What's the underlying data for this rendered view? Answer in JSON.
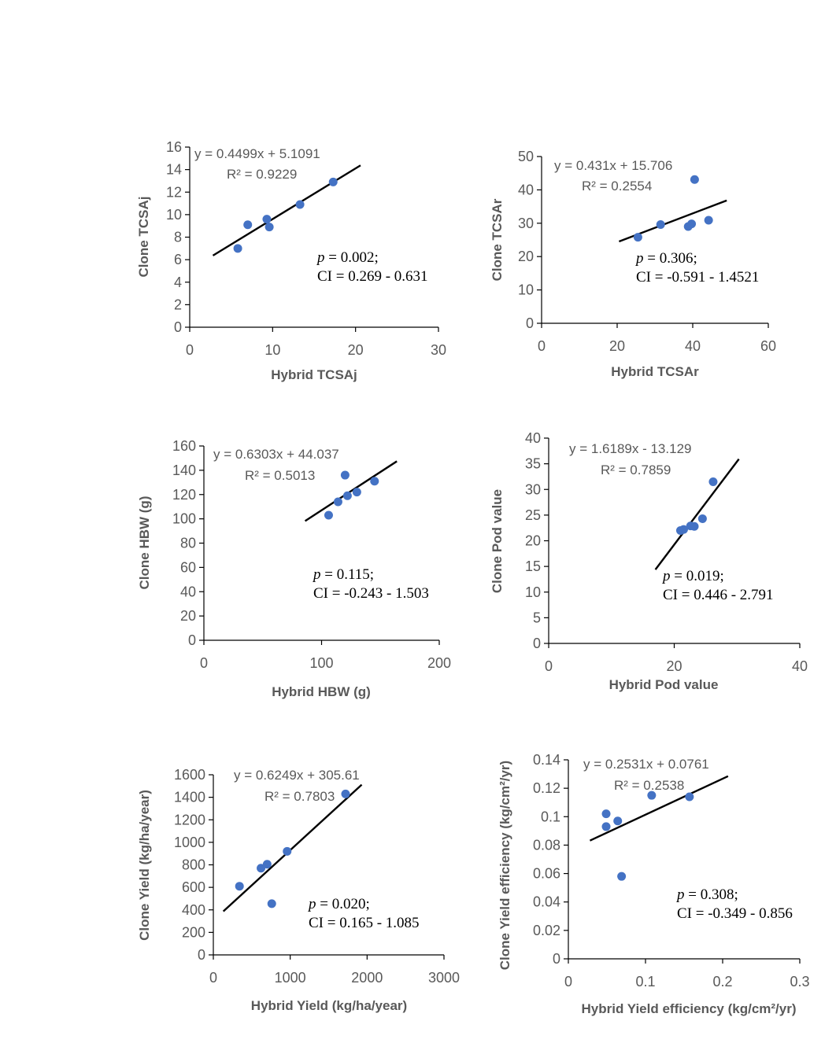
{
  "colors": {
    "point": "#4472c4",
    "trendline": "#000000",
    "text": "#595959"
  },
  "chart_data": [
    {
      "type": "scatter",
      "xlabel": "Hybrid TCSAj",
      "ylabel": "Clone TCSAj",
      "xlim": [
        0,
        30
      ],
      "ylim": [
        0,
        16
      ],
      "xticks": [
        "0",
        "10",
        "20",
        "30"
      ],
      "yticks": [
        "0",
        "2",
        "4",
        "6",
        "8",
        "10",
        "12",
        "14",
        "16"
      ],
      "points": [
        [
          5.8,
          7.0
        ],
        [
          7.0,
          9.1
        ],
        [
          9.3,
          9.6
        ],
        [
          9.6,
          8.9
        ],
        [
          13.3,
          10.9
        ],
        [
          17.3,
          12.9
        ]
      ],
      "trendline": {
        "x": [
          2.8,
          20.6
        ]
      },
      "equation": "y = 0.4499x + 5.1091",
      "r2": "R² = 0.9229",
      "p_value": "p = 0.002;",
      "ci": "CI = 0.269 - 0.631"
    },
    {
      "type": "scatter",
      "xlabel": "Hybrid TCSAr",
      "ylabel": "Clone TCSAr",
      "xlim": [
        0,
        60
      ],
      "ylim": [
        0,
        50
      ],
      "xticks": [
        "0",
        "20",
        "40",
        "60"
      ],
      "yticks": [
        "0",
        "10",
        "20",
        "30",
        "40",
        "50"
      ],
      "points": [
        [
          25.5,
          25.8
        ],
        [
          31.5,
          29.6
        ],
        [
          38.8,
          29.0
        ],
        [
          39.7,
          29.8
        ],
        [
          40.5,
          43.1
        ],
        [
          44.2,
          30.9
        ]
      ],
      "trendline": {
        "x": [
          20.5,
          49.0
        ]
      },
      "equation": "y = 0.431x + 15.706",
      "r2": "R² = 0.2554",
      "p_value": "p = 0.306;",
      "ci": "CI = -0.591 - 1.4521"
    },
    {
      "type": "scatter",
      "xlabel": "Hybrid HBW (g)",
      "ylabel": "Clone HBW (g)",
      "xlim": [
        0,
        200
      ],
      "ylim": [
        0,
        160
      ],
      "xticks": [
        "0",
        "100",
        "200"
      ],
      "yticks": [
        "0",
        "20",
        "40",
        "60",
        "80",
        "100",
        "120",
        "140",
        "160"
      ],
      "points": [
        [
          106,
          103
        ],
        [
          114,
          114
        ],
        [
          120,
          136
        ],
        [
          122,
          119
        ],
        [
          130,
          122
        ],
        [
          145,
          131
        ]
      ],
      "trendline": {
        "x": [
          86,
          164
        ]
      },
      "equation": "y = 0.6303x + 44.037",
      "r2": "R² = 0.5013",
      "p_value": "p = 0.115;",
      "ci": "CI = -0.243 - 1.503"
    },
    {
      "type": "scatter",
      "xlabel": "Hybrid Pod value",
      "ylabel": "Clone Pod value",
      "xlim": [
        0,
        40
      ],
      "ylim": [
        0,
        40
      ],
      "xticks": [
        "0",
        "20",
        "40"
      ],
      "yticks": [
        "0",
        "5",
        "10",
        "15",
        "20",
        "25",
        "30",
        "35",
        "40"
      ],
      "points": [
        [
          21.0,
          22.0
        ],
        [
          21.5,
          22.2
        ],
        [
          22.6,
          22.9
        ],
        [
          23.2,
          22.8
        ],
        [
          24.5,
          24.3
        ],
        [
          26.2,
          31.5
        ]
      ],
      "trendline": {
        "x": [
          17.0,
          30.3
        ]
      },
      "equation": "y = 1.6189x - 13.129",
      "r2": "R² = 0.7859",
      "p_value": "p = 0.019;",
      "ci": "CI = 0.446 - 2.791"
    },
    {
      "type": "scatter",
      "xlabel": "Hybrid Yield (kg/ha/year)",
      "ylabel": "Clone Yield (kg/ha/year)",
      "xlim": [
        0,
        3000
      ],
      "ylim": [
        0,
        1600
      ],
      "xticks": [
        "0",
        "1000",
        "2000",
        "3000"
      ],
      "yticks": [
        "0",
        "200",
        "400",
        "600",
        "800",
        "1000",
        "1200",
        "1400",
        "1600"
      ],
      "points": [
        [
          340,
          610
        ],
        [
          620,
          770
        ],
        [
          700,
          805
        ],
        [
          760,
          455
        ],
        [
          960,
          920
        ],
        [
          1720,
          1430
        ]
      ],
      "trendline": {
        "x": [
          130,
          1930
        ]
      },
      "equation": "y = 0.6249x + 305.61",
      "r2": "R² = 0.7803",
      "p_value": "p = 0.020;",
      "ci": "CI = 0.165 - 1.085"
    },
    {
      "type": "scatter",
      "xlabel": "Hybrid Yield efficiency (kg/cm²/yr)",
      "ylabel": "Clone Yield efficiency (kg/cm²/yr)",
      "xlim": [
        0,
        0.3
      ],
      "ylim": [
        0,
        0.14
      ],
      "xticks": [
        "0",
        "0.1",
        "0.2",
        "0.3"
      ],
      "yticks": [
        "0",
        "0.02",
        "0.04",
        "0.06",
        "0.08",
        "0.1",
        "0.12",
        "0.14"
      ],
      "points": [
        [
          0.049,
          0.093
        ],
        [
          0.049,
          0.102
        ],
        [
          0.064,
          0.097
        ],
        [
          0.069,
          0.058
        ],
        [
          0.108,
          0.115
        ],
        [
          0.157,
          0.114
        ]
      ],
      "trendline": {
        "x": [
          0.028,
          0.207
        ]
      },
      "equation": "y = 0.2531x + 0.0761",
      "r2": "R² = 0.2538",
      "p_value": "p = 0.308;",
      "ci": "CI = -0.349 - 0.856"
    }
  ]
}
